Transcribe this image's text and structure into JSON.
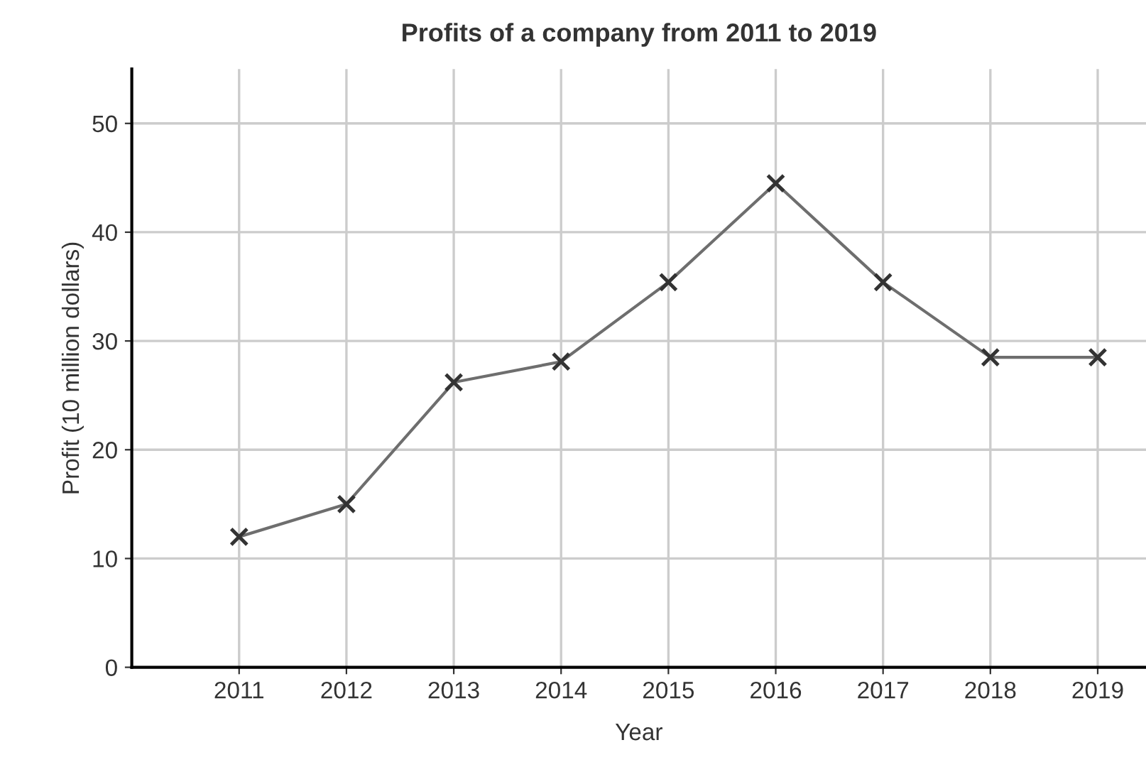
{
  "chart_data": {
    "type": "line",
    "title": "Profits of a company from 2011 to 2019",
    "xlabel": "Year",
    "ylabel": "Profit (10 million dollars)",
    "categories": [
      "2011",
      "2012",
      "2013",
      "2014",
      "2015",
      "2016",
      "2017",
      "2018",
      "2019"
    ],
    "series": [
      {
        "color": "#6e6e6e",
        "values": [
          12,
          15,
          26.2,
          28.1,
          35.4,
          44.5,
          35.4,
          28.5,
          28.5
        ]
      }
    ],
    "ylim": [
      0,
      55
    ],
    "yticks": [
      0,
      10,
      20,
      30,
      40,
      50
    ],
    "grid": true,
    "marker": "cross",
    "line_style": "solid"
  }
}
